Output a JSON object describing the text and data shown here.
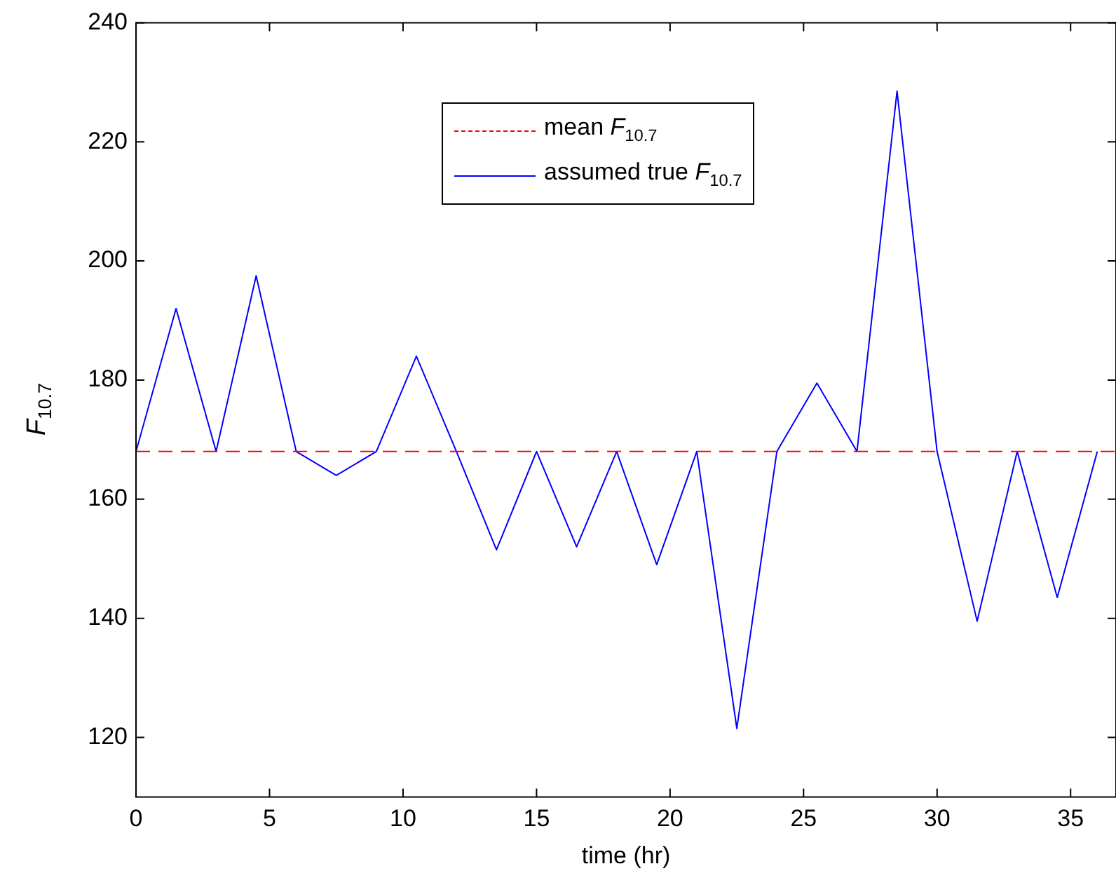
{
  "chart_data": {
    "type": "line",
    "xlabel": "time (hr)",
    "ylabel": "F$_{10.7}$",
    "x": [
      0,
      1.5,
      3,
      4.5,
      6,
      7.5,
      9,
      10.5,
      12,
      13.5,
      15,
      16.5,
      18,
      19.5,
      21,
      22.5,
      24,
      25.5,
      27,
      28.5,
      30,
      31.5,
      33,
      34.5,
      36
    ],
    "series": [
      {
        "name": "assumed true  F$_{10.7}$",
        "color": "#0000ff",
        "values": [
          168,
          192,
          168,
          197.5,
          168,
          164,
          168,
          184,
          168,
          151.5,
          168,
          152,
          168,
          149,
          168,
          121.5,
          168,
          179.5,
          168,
          228.5,
          168,
          139.5,
          168,
          143.5,
          168
        ]
      }
    ],
    "ref_lines": [
      {
        "axis": "y",
        "value": 168,
        "label": "mean  F$_{10.7}$",
        "color": "#ff0000",
        "line_style": "dashed"
      }
    ],
    "xlim": [
      0,
      36.7
    ],
    "xticks": [
      0,
      5,
      10,
      15,
      20,
      25,
      30,
      35
    ],
    "ylim": [
      110,
      240
    ],
    "yticks": [
      120,
      140,
      160,
      180,
      200,
      220,
      240
    ],
    "grid": false,
    "legend": "top",
    "marker": "none",
    "line_style": "solid"
  }
}
